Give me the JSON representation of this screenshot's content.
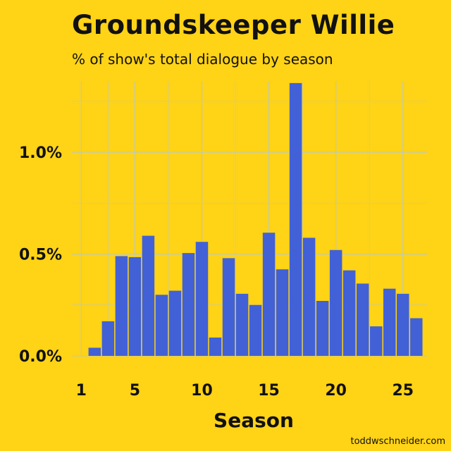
{
  "chart_data": {
    "type": "bar",
    "title": "Groundskeeper Willie",
    "subtitle": "% of show's total dialogue by season",
    "xlabel": "Season",
    "ylabel": "",
    "xlim": [
      0.3,
      26.8
    ],
    "ylim": [
      0,
      1.35
    ],
    "x_ticks": [
      1,
      5,
      10,
      15,
      20,
      25
    ],
    "y_ticks": [
      0.0,
      0.5,
      1.0
    ],
    "y_tick_labels": [
      "0.0%",
      "0.5%",
      "1.0%"
    ],
    "grid": true,
    "bar_color": "#4261D6",
    "grid_color": "#B7C9C4",
    "x": [
      2,
      3,
      4,
      5,
      6,
      7,
      8,
      9,
      10,
      11,
      12,
      13,
      14,
      15,
      16,
      17,
      18,
      19,
      20,
      21,
      22,
      23,
      24,
      25,
      26
    ],
    "values": [
      0.04,
      0.17,
      0.49,
      0.485,
      0.59,
      0.3,
      0.32,
      0.505,
      0.56,
      0.09,
      0.48,
      0.305,
      0.25,
      0.605,
      0.425,
      1.34,
      0.58,
      0.27,
      0.52,
      0.42,
      0.355,
      0.145,
      0.33,
      0.305,
      0.185
    ]
  },
  "credit": "toddwschneider.com"
}
